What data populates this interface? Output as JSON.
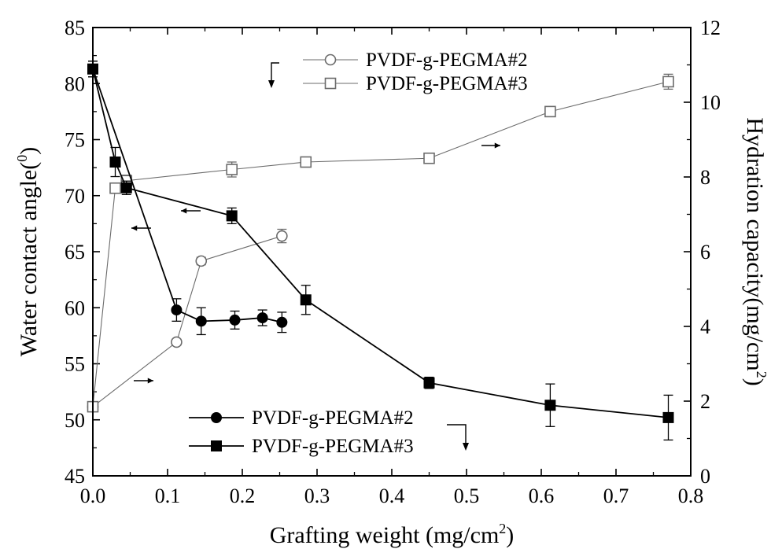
{
  "chart_data": {
    "type": "line",
    "x": {
      "label": "Grafting weight (mg/cm",
      "label_sup": "2",
      "label_end": ")",
      "lim": [
        0,
        0.8
      ],
      "ticks": [
        "0.0",
        "0.1",
        "0.2",
        "0.3",
        "0.4",
        "0.5",
        "0.6",
        "0.7",
        "0.8"
      ]
    },
    "y_left": {
      "label": "Water contact angle(",
      "label_sup": "0",
      "label_end": ")",
      "lim": [
        45,
        85
      ],
      "ticks": [
        "45",
        "50",
        "55",
        "60",
        "65",
        "70",
        "75",
        "80",
        "85"
      ]
    },
    "y_right": {
      "label": "Hydration capacity(mg/cm",
      "label_sup": "2",
      "label_end": ")",
      "lim": [
        0,
        12
      ],
      "ticks": [
        "0",
        "2",
        "4",
        "6",
        "8",
        "10",
        "12"
      ]
    },
    "series": [
      {
        "name": "PVDF-g-PEGMA#2",
        "axis": "left",
        "marker": "filled-circle",
        "color": "#000000",
        "points": [
          {
            "x": 0.0,
            "y": 81.3,
            "err": 0.7
          },
          {
            "x": 0.112,
            "y": 59.8,
            "err": 1.0
          },
          {
            "x": 0.145,
            "y": 58.8,
            "err": 1.2
          },
          {
            "x": 0.19,
            "y": 58.9,
            "err": 0.8
          },
          {
            "x": 0.227,
            "y": 59.1,
            "err": 0.7
          },
          {
            "x": 0.253,
            "y": 58.7,
            "err": 0.9
          }
        ]
      },
      {
        "name": "PVDF-g-PEGMA#3",
        "axis": "left",
        "marker": "filled-square",
        "color": "#000000",
        "points": [
          {
            "x": 0.0,
            "y": 81.3,
            "err": 0.7
          },
          {
            "x": 0.03,
            "y": 73.0,
            "err": 1.3
          },
          {
            "x": 0.045,
            "y": 70.7,
            "err": 0.6
          },
          {
            "x": 0.186,
            "y": 68.2,
            "err": 0.7
          },
          {
            "x": 0.285,
            "y": 60.7,
            "err": 1.3
          },
          {
            "x": 0.45,
            "y": 53.3,
            "err": 0.5
          },
          {
            "x": 0.612,
            "y": 51.3,
            "err": 1.9
          },
          {
            "x": 0.77,
            "y": 50.2,
            "err": 2.0
          }
        ]
      },
      {
        "name": "PVDF-g-PEGMA#2",
        "axis": "right",
        "marker": "open-circle",
        "color": "#6b6b6b",
        "points": [
          {
            "x": 0.0,
            "y": 1.85,
            "err": 0.08
          },
          {
            "x": 0.112,
            "y": 3.58,
            "err": 0.08
          },
          {
            "x": 0.145,
            "y": 5.75,
            "err": 0.1
          },
          {
            "x": 0.253,
            "y": 6.42,
            "err": 0.18
          }
        ]
      },
      {
        "name": "PVDF-g-PEGMA#3",
        "axis": "right",
        "marker": "open-square",
        "color": "#6b6b6b",
        "points": [
          {
            "x": 0.0,
            "y": 1.85,
            "err": 0.08
          },
          {
            "x": 0.03,
            "y": 7.7,
            "err": 0.1
          },
          {
            "x": 0.045,
            "y": 7.9,
            "err": 0.15
          },
          {
            "x": 0.186,
            "y": 8.2,
            "err": 0.2
          },
          {
            "x": 0.285,
            "y": 8.4,
            "err": 0.1
          },
          {
            "x": 0.45,
            "y": 8.5,
            "err": 0.1
          },
          {
            "x": 0.612,
            "y": 9.75,
            "err": 0.1
          },
          {
            "x": 0.77,
            "y": 10.55,
            "err": 0.2
          }
        ]
      }
    ],
    "legends": [
      {
        "position": "top-center",
        "axis": "right",
        "entries": [
          "PVDF-g-PEGMA#2",
          "PVDF-g-PEGMA#3"
        ]
      },
      {
        "position": "bottom-center",
        "axis": "left",
        "entries": [
          "PVDF-g-PEGMA#2",
          "PVDF-g-PEGMA#3"
        ]
      }
    ]
  }
}
